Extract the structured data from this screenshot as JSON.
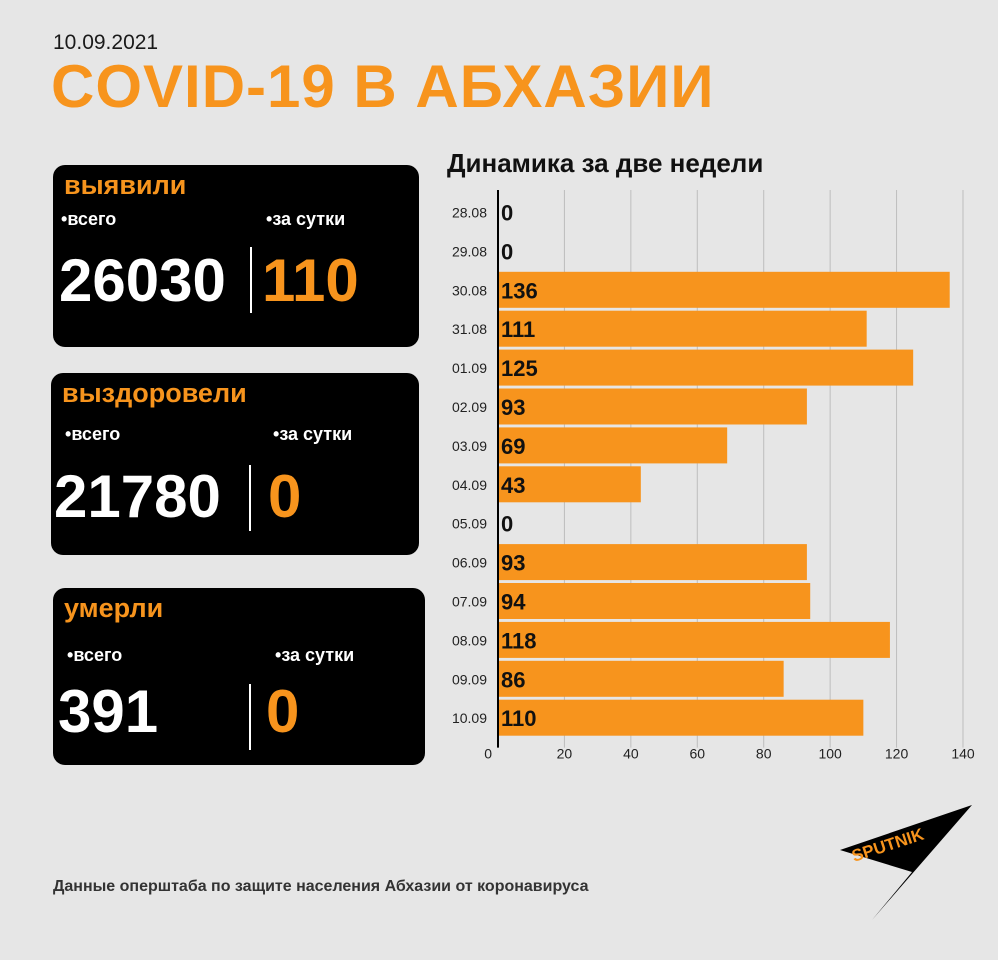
{
  "header": {
    "date": "10.09.2021",
    "title": "COVID-19 В АБХАЗИИ"
  },
  "cards": [
    {
      "title": "выявили",
      "total_label": "всего",
      "daily_label": "за сутки",
      "total": "26030",
      "daily": "110"
    },
    {
      "title": "выздоровели",
      "total_label": "всего",
      "daily_label": "за сутки",
      "total": "21780",
      "daily": "0"
    },
    {
      "title": "умерли",
      "total_label": "всего",
      "daily_label": "за сутки",
      "total": "391",
      "daily": "0"
    }
  ],
  "chart_title": "Динамика за две недели",
  "source": "Данные оперштаба по защите населения Абхазии от коронавируса",
  "logo_text": "SPUTNIK",
  "colors": {
    "accent": "#f7941d",
    "background": "#e6e6e6",
    "card": "#000000"
  },
  "chart_data": {
    "type": "bar",
    "orientation": "horizontal",
    "title": "Динамика за две недели",
    "categories": [
      "28.08",
      "29.08",
      "30.08",
      "31.08",
      "01.09",
      "02.09",
      "03.09",
      "04.09",
      "05.09",
      "06.09",
      "07.09",
      "08.09",
      "09.09",
      "10.09"
    ],
    "values": [
      0,
      0,
      136,
      111,
      125,
      93,
      69,
      43,
      0,
      93,
      94,
      118,
      86,
      110
    ],
    "xlim": [
      0,
      140
    ],
    "xticks": [
      0,
      20,
      40,
      60,
      80,
      100,
      120,
      140
    ],
    "grid": true,
    "color": "#f7941d"
  }
}
